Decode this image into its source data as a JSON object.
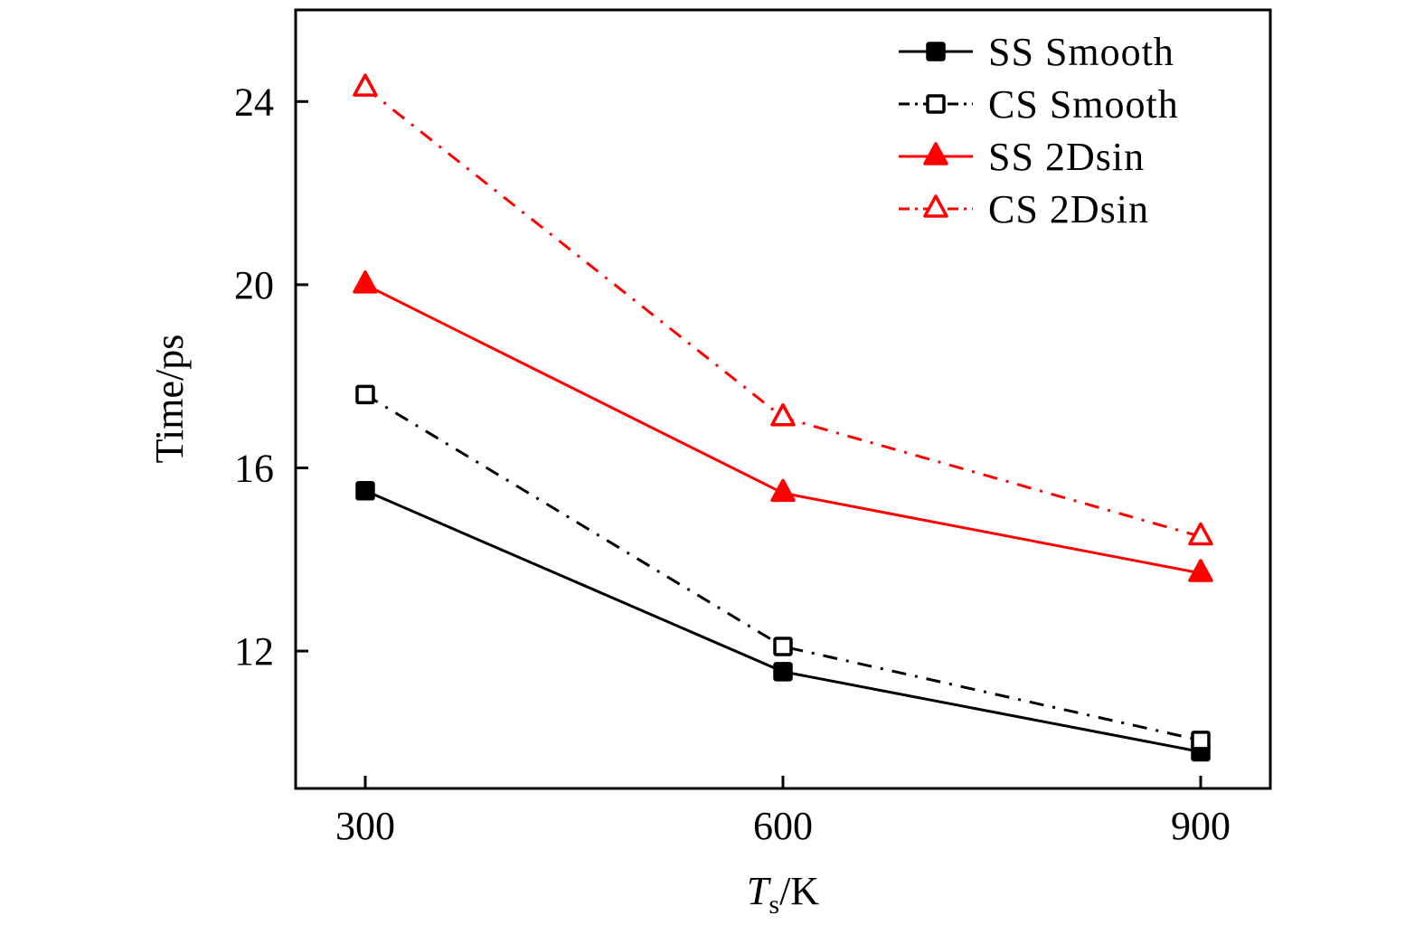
{
  "chart_data": {
    "type": "line",
    "title": "",
    "xlabel": {
      "main": "T",
      "subscript": "s",
      "unit": "/K"
    },
    "ylabel": "Time/ps",
    "xlim": [
      250,
      950
    ],
    "ylim": [
      9,
      26
    ],
    "x_ticks": [
      300,
      600,
      900
    ],
    "x_tick_labels": [
      "300",
      "600",
      "900"
    ],
    "y_ticks": [
      12,
      16,
      20,
      24
    ],
    "y_tick_labels": [
      "12",
      "16",
      "20",
      "24"
    ],
    "grid": false,
    "legend_position": "top-right",
    "x": [
      300,
      600,
      900
    ],
    "series": [
      {
        "name": "SS Smooth",
        "values": [
          15.5,
          11.55,
          9.8
        ],
        "color": "#000000",
        "line": "solid",
        "marker": "square",
        "filled": true
      },
      {
        "name": "CS Smooth",
        "values": [
          17.6,
          12.1,
          10.05
        ],
        "color": "#000000",
        "line": "dashdot",
        "marker": "square",
        "filled": false
      },
      {
        "name": "SS 2Dsin",
        "values": [
          20.0,
          15.45,
          13.7
        ],
        "color": "#ff0000",
        "line": "solid",
        "marker": "triangle",
        "filled": true
      },
      {
        "name": "CS 2Dsin",
        "values": [
          24.3,
          17.1,
          14.5
        ],
        "color": "#ff0000",
        "line": "dashdot",
        "marker": "triangle",
        "filled": false
      }
    ]
  }
}
